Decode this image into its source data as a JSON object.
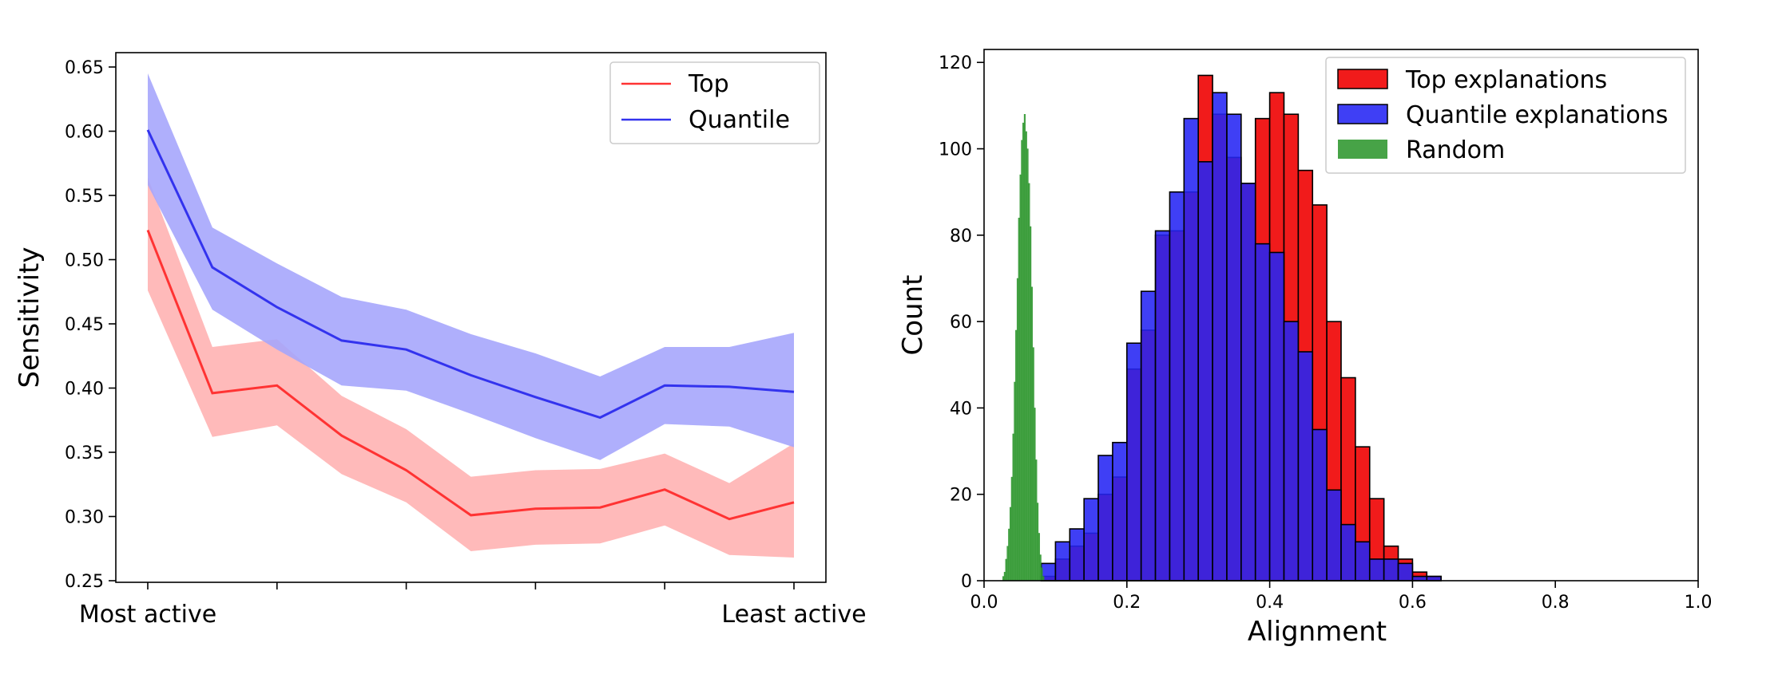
{
  "chart_data": [
    {
      "type": "line",
      "ylabel": "Sensitivity",
      "ylim": [
        0.25,
        0.65
      ],
      "yticks": [
        "0.25",
        "0.30",
        "0.35",
        "0.40",
        "0.45",
        "0.50",
        "0.55",
        "0.60",
        "0.65"
      ],
      "x": [
        0,
        1,
        2,
        3,
        4,
        5,
        6,
        7,
        8,
        9,
        10
      ],
      "xlim": [
        0,
        10
      ],
      "xtick_positions": [
        0,
        2,
        4,
        6,
        8,
        10
      ],
      "x_end_labels": [
        "Most active",
        "Least active"
      ],
      "legend_position": "top-right",
      "series": [
        {
          "name": "Top",
          "color": "#ff3333",
          "band_color": "#ffb3b3",
          "values": [
            0.523,
            0.396,
            0.402,
            0.363,
            0.336,
            0.301,
            0.306,
            0.307,
            0.321,
            0.298,
            0.311
          ],
          "lower": [
            0.476,
            0.362,
            0.371,
            0.333,
            0.311,
            0.273,
            0.278,
            0.279,
            0.293,
            0.27,
            0.268
          ],
          "upper": [
            0.564,
            0.432,
            0.438,
            0.394,
            0.368,
            0.331,
            0.336,
            0.337,
            0.349,
            0.326,
            0.357
          ]
        },
        {
          "name": "Quantile",
          "color": "#3333ee",
          "band_color": "#a6a6fc",
          "values": [
            0.601,
            0.494,
            0.463,
            0.437,
            0.43,
            0.41,
            0.393,
            0.377,
            0.402,
            0.401,
            0.397
          ],
          "lower": [
            0.558,
            0.461,
            0.43,
            0.402,
            0.398,
            0.38,
            0.361,
            0.344,
            0.372,
            0.37,
            0.354
          ],
          "upper": [
            0.645,
            0.525,
            0.497,
            0.471,
            0.461,
            0.442,
            0.427,
            0.409,
            0.432,
            0.432,
            0.443
          ]
        }
      ]
    },
    {
      "type": "histogram",
      "xlabel": "Alignment",
      "ylabel": "Count",
      "xlim": [
        0.0,
        1.0
      ],
      "ylim": [
        0,
        123
      ],
      "xticks": [
        "0.0",
        "0.2",
        "0.4",
        "0.6",
        "0.8",
        "1.0"
      ],
      "yticks": [
        "0",
        "20",
        "40",
        "60",
        "80",
        "100",
        "120"
      ],
      "legend_position": "top-right",
      "series": [
        {
          "name": "Top explanations",
          "color": "#f11b1b",
          "bin_start": 0.08,
          "bin_width": 0.02,
          "counts": [
            1,
            5,
            8,
            11,
            20,
            24,
            49,
            58,
            80,
            81,
            90,
            117,
            108,
            98,
            92,
            107,
            113,
            108,
            95,
            87,
            60,
            47,
            31,
            19,
            8,
            5,
            2,
            1
          ]
        },
        {
          "name": "Quantile explanations",
          "color": "#2424f4",
          "bin_start": 0.08,
          "bin_width": 0.02,
          "counts": [
            4,
            9,
            12,
            19,
            29,
            32,
            55,
            67,
            81,
            90,
            107,
            97,
            113,
            108,
            92,
            78,
            76,
            60,
            53,
            35,
            21,
            13,
            9,
            5,
            5,
            4,
            1,
            1
          ]
        },
        {
          "name": "Random",
          "color": "#2d962d",
          "bin_start": 0.026,
          "bin_width": 0.002,
          "counts": [
            1,
            2,
            5,
            8,
            12,
            17,
            24,
            34,
            46,
            58,
            70,
            84,
            94,
            102,
            106,
            108,
            104,
            100,
            92,
            82,
            68,
            54,
            40,
            28,
            18,
            11,
            6,
            3,
            1
          ]
        }
      ]
    }
  ]
}
